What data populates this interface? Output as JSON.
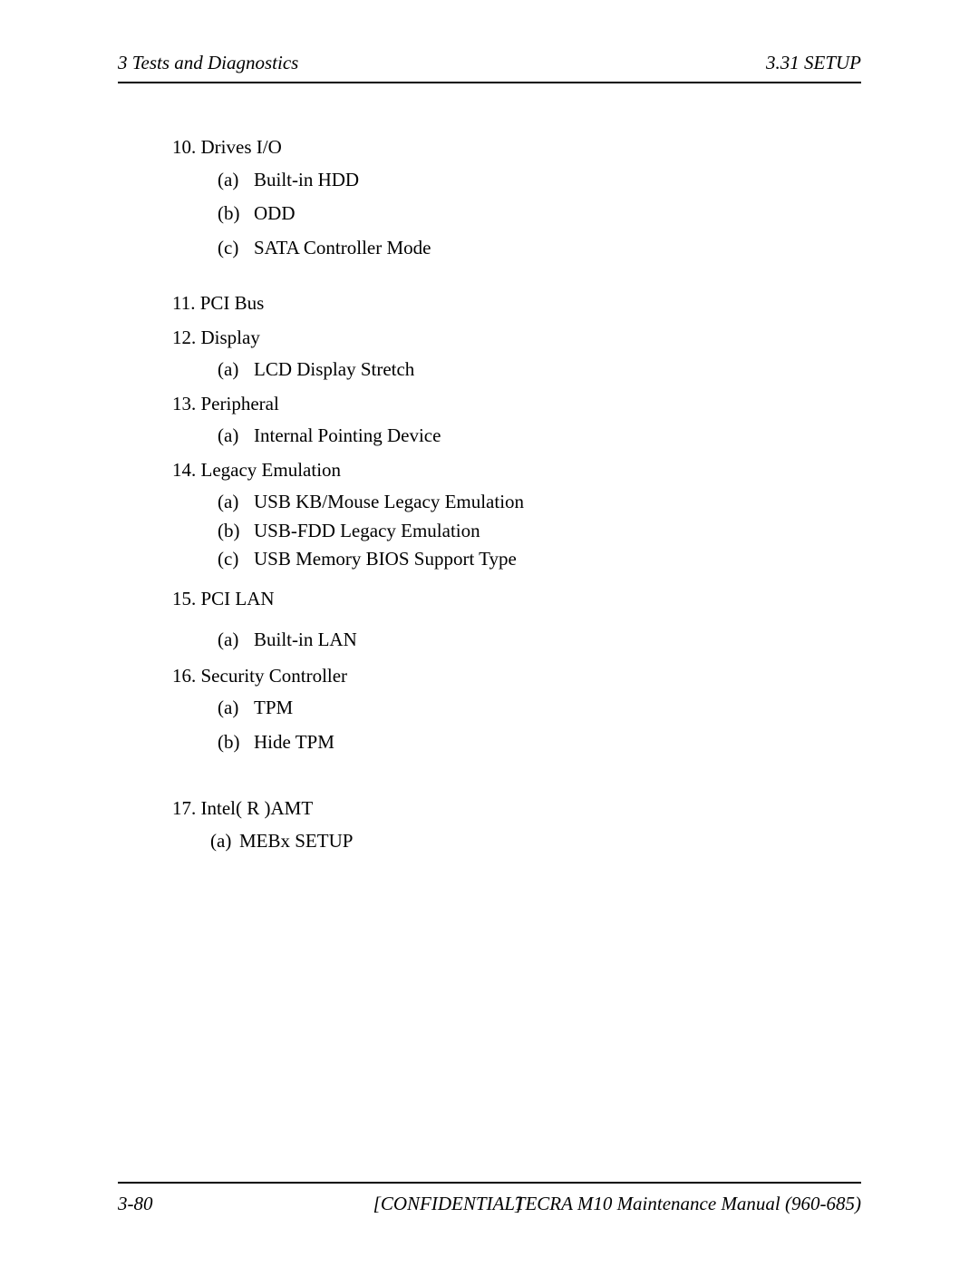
{
  "header": {
    "left": "3 Tests and Diagnostics",
    "right": "3.31 SETUP"
  },
  "items": [
    {
      "number": "10.",
      "title": "Drives I/O",
      "blockClass": "block-10",
      "subs": [
        {
          "letter": "(a)",
          "text": "Built-in HDD"
        },
        {
          "letter": "(b)",
          "text": "ODD"
        },
        {
          "letter": "(c)",
          "text": "SATA Controller Mode"
        }
      ]
    },
    {
      "number": "11.",
      "title": "PCI Bus",
      "blockClass": "block-11",
      "subs": []
    },
    {
      "number": "12.",
      "title": "Display",
      "blockClass": "block-12",
      "subs": [
        {
          "letter": "(a)",
          "text": "LCD Display Stretch"
        }
      ]
    },
    {
      "number": "13.",
      "title": "Peripheral",
      "blockClass": "block-13",
      "subs": [
        {
          "letter": "(a)",
          "text": "Internal Pointing Device"
        }
      ]
    },
    {
      "number": "14.",
      "title": "Legacy Emulation",
      "blockClass": "block-14",
      "tight": true,
      "subs": [
        {
          "letter": "(a)",
          "text": "USB KB/Mouse Legacy Emulation"
        },
        {
          "letter": "(b)",
          "text": "USB-FDD Legacy Emulation"
        },
        {
          "letter": "(c)",
          "text": "USB Memory BIOS Support  Type"
        }
      ]
    },
    {
      "number": "15.",
      "title": "PCI LAN",
      "blockClass": "block-15",
      "gapBeforeSubs": true,
      "subs": [
        {
          "letter": "(a)",
          "text": "Built-in LAN"
        }
      ]
    },
    {
      "number": "16.",
      "title": "Security Controller",
      "blockClass": "block-16",
      "subs": [
        {
          "letter": "(a)",
          "text": "TPM"
        },
        {
          "letter": "(b)",
          "text": "Hide TPM"
        }
      ]
    },
    {
      "number": "17.",
      "title": "Intel( R )AMT",
      "blockClass": "block-17",
      "subs": [
        {
          "letter": "(a)",
          "text": "MEBx SETUP"
        }
      ]
    }
  ],
  "footer": {
    "left": "3-80",
    "center": "[CONFIDENTIAL]",
    "right": "TECRA M10 Maintenance Manual (960-685)"
  }
}
